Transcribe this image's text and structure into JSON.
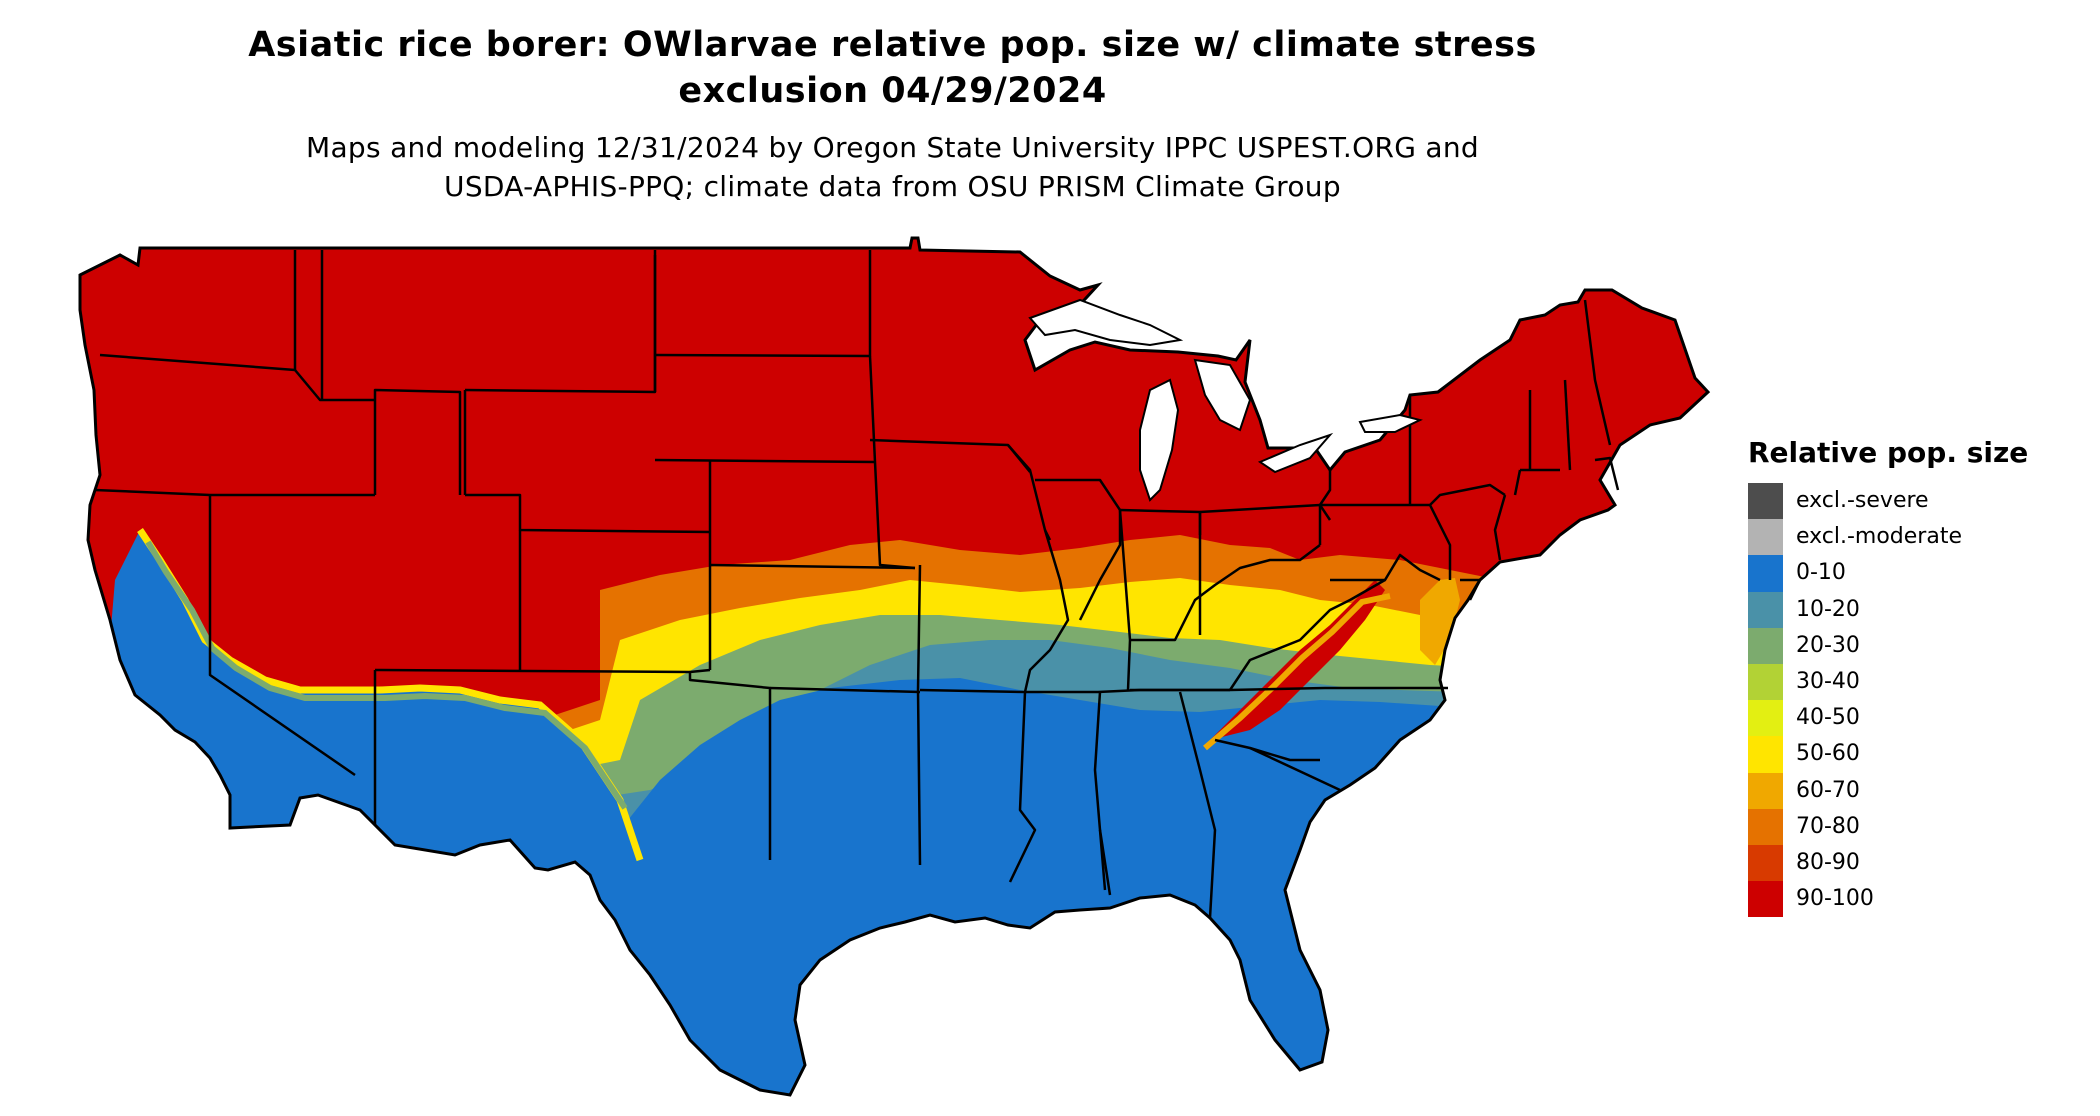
{
  "title": {
    "line1": "Asiatic rice borer: OWlarvae relative pop. size w/ climate stress",
    "line2": "exclusion 04/29/2024"
  },
  "subtitle": {
    "line1": "Maps and modeling 12/31/2024 by Oregon State University IPPC USPEST.ORG and",
    "line2": "USDA-APHIS-PPQ; climate data from OSU PRISM Climate Group"
  },
  "map": {
    "region": "contiguous United States",
    "dominant_north": "90-100",
    "dominant_south": "0-10"
  },
  "legend": {
    "title": "Relative pop. size",
    "items": [
      {
        "label": "excl.-severe",
        "color": "#4d4d4d"
      },
      {
        "label": "excl.-moderate",
        "color": "#b3b3b3"
      },
      {
        "label": "0-10",
        "color": "#1874cd"
      },
      {
        "label": "10-20",
        "color": "#4a91a8"
      },
      {
        "label": "20-30",
        "color": "#7cab6e"
      },
      {
        "label": "30-40",
        "color": "#b2d235"
      },
      {
        "label": "40-50",
        "color": "#e3ef12"
      },
      {
        "label": "50-60",
        "color": "#ffe500"
      },
      {
        "label": "60-70",
        "color": "#f0a800"
      },
      {
        "label": "70-80",
        "color": "#e57200"
      },
      {
        "label": "80-90",
        "color": "#d83a00"
      },
      {
        "label": "90-100",
        "color": "#cd0000"
      }
    ]
  }
}
